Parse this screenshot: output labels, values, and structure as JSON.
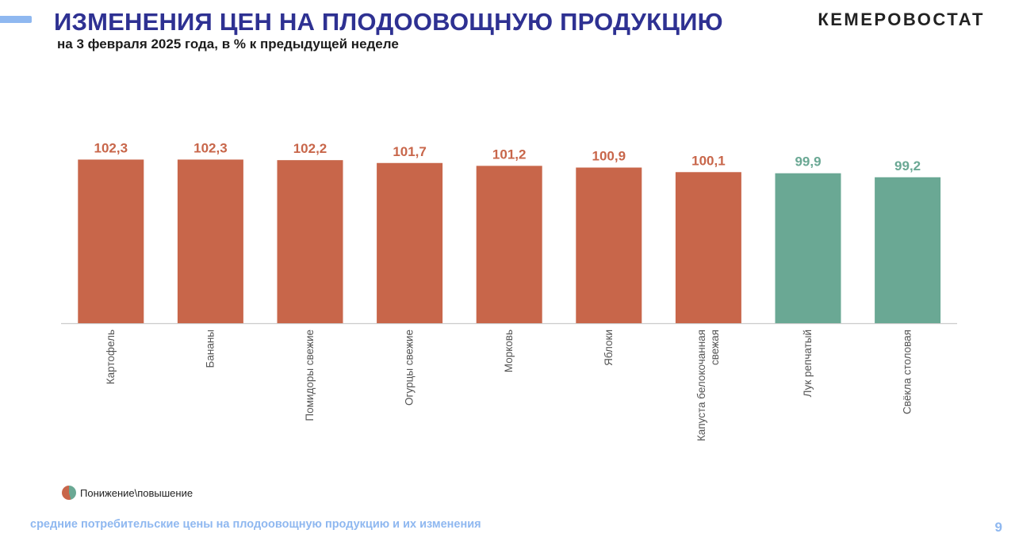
{
  "header": {
    "title": "ИЗМЕНЕНИЯ ЦЕН НА ПЛОДООВОЩНУЮ ПРОДУКЦИЮ",
    "subtitle": "на 3 февраля 2025 года, в % к предыдущей неделе",
    "logo": "КЕМЕРОВОСТАТ"
  },
  "chart_data": {
    "type": "bar",
    "categories": [
      [
        "Картофель"
      ],
      [
        "Бананы"
      ],
      [
        "Помидоры свежие"
      ],
      [
        "Огурцы свежие"
      ],
      [
        "Морковь"
      ],
      [
        "Яблоки"
      ],
      [
        "Капуста белокочанная",
        "свежая"
      ],
      [
        "Лук репчатый"
      ],
      [
        "Свёкла столовая"
      ]
    ],
    "values": [
      102.3,
      102.3,
      102.2,
      101.7,
      101.2,
      100.9,
      100.1,
      99.9,
      99.2
    ],
    "value_labels": [
      "102,3",
      "102,3",
      "102,2",
      "101,7",
      "101,2",
      "100,9",
      "100,1",
      "99,9",
      "99,2"
    ],
    "colors": {
      "increase": "#c8664a",
      "decrease": "#6aa894",
      "axis": "#cccccc",
      "category_label": "#555555"
    },
    "grid": false,
    "tick_label_rotation": "vertical"
  },
  "legend": {
    "label": "Понижение\\повышение"
  },
  "footer": {
    "text": "средние потребительские цены на плодоовощную продукцию и их изменения",
    "page": "9"
  }
}
